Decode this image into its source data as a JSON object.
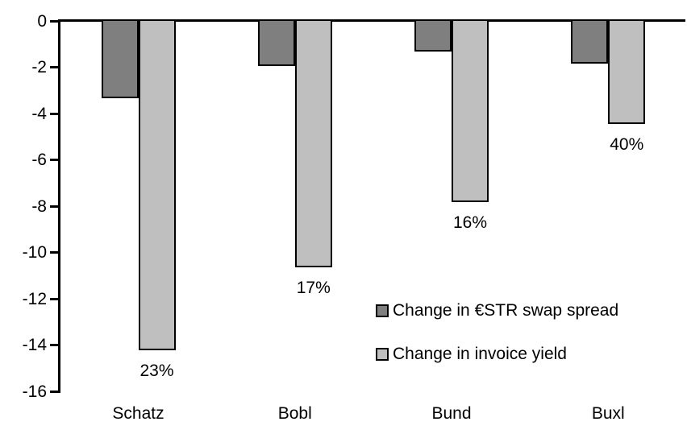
{
  "chart_data": {
    "type": "bar",
    "title": "",
    "xlabel": "",
    "ylabel": "",
    "categories": [
      "Schatz",
      "Bobl",
      "Bund",
      "Buxl"
    ],
    "series": [
      {
        "name": "Change in €STR swap spread",
        "color": "#7f7f7f",
        "values": [
          -3.3,
          -1.9,
          -1.3,
          -1.8
        ]
      },
      {
        "name": "Change in invoice yield",
        "color": "#bfbfbf",
        "values": [
          -14.2,
          -10.6,
          -7.8,
          -4.4
        ],
        "labels": [
          "23%",
          "17%",
          "16%",
          "40%"
        ]
      }
    ],
    "ylim": [
      -16,
      0
    ],
    "yticks": [
      0,
      -2,
      -4,
      -6,
      -8,
      -10,
      -12,
      -14,
      -16
    ],
    "grid": false,
    "legend_position": "inside-right",
    "axis_color": "#000000",
    "bar_border_color": "#000000",
    "background_color": "#ffffff"
  }
}
